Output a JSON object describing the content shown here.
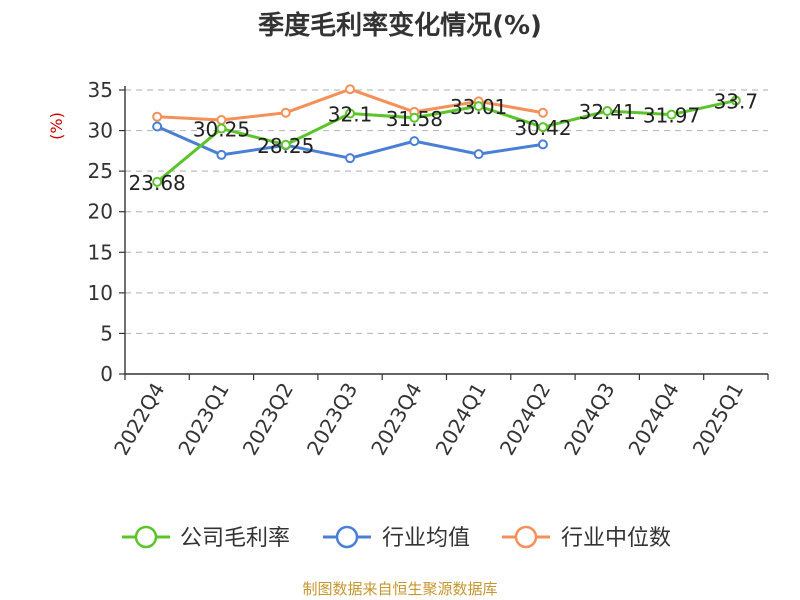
{
  "chart_data": {
    "type": "line",
    "title": "季度毛利率变化情况(%)",
    "ylabel": "(%)",
    "ylim": [
      0,
      35
    ],
    "yticks": [
      0,
      5,
      10,
      15,
      20,
      25,
      30,
      35
    ],
    "grid": true,
    "legend_position": "bottom",
    "categories": [
      "2022Q4",
      "2023Q1",
      "2023Q2",
      "2023Q3",
      "2023Q4",
      "2024Q1",
      "2024Q2",
      "2024Q3",
      "2024Q4",
      "2025Q1"
    ],
    "series": [
      {
        "name": "公司毛利率",
        "color": "#5cc42b",
        "values": [
          23.68,
          30.25,
          28.25,
          32.1,
          31.58,
          33.01,
          30.42,
          32.41,
          31.97,
          33.7
        ],
        "labels": [
          "23.68",
          "30.25",
          "28.25",
          "32.1",
          "31.58",
          "33.01",
          "30.42",
          "32.41",
          "31.97",
          "33.7"
        ]
      },
      {
        "name": "行业均值",
        "color": "#4a7fd6",
        "values": [
          30.5,
          27.0,
          28.2,
          26.6,
          28.7,
          27.1,
          28.3,
          null,
          null,
          null
        ]
      },
      {
        "name": "行业中位数",
        "color": "#f59058",
        "values": [
          31.7,
          31.3,
          32.2,
          35.1,
          32.3,
          33.6,
          32.2,
          null,
          null,
          null
        ]
      }
    ],
    "source": "制图数据来自恒生聚源数据库"
  }
}
